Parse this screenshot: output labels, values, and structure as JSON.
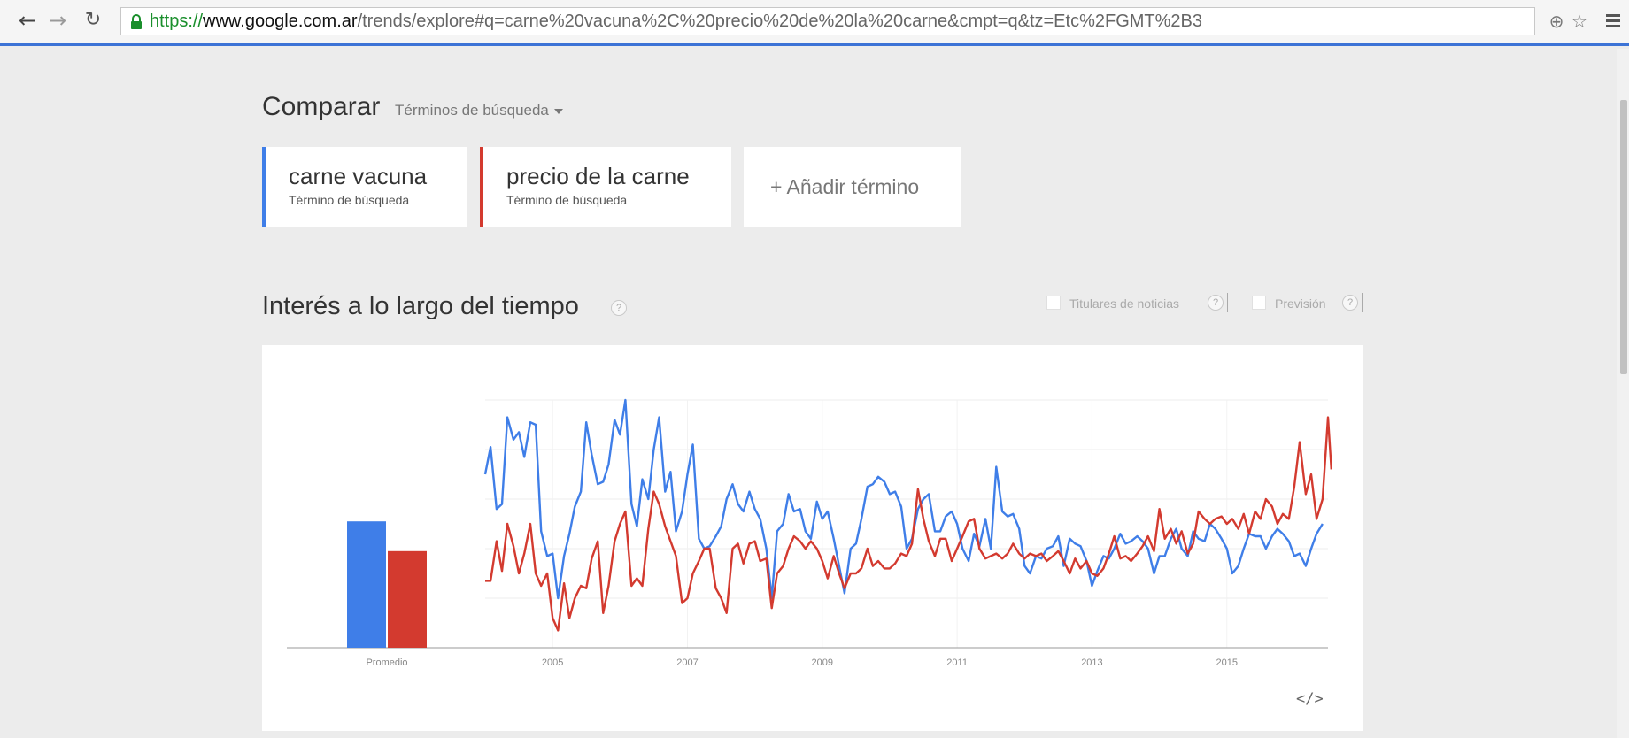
{
  "browser": {
    "url_protocol": "https://",
    "url_host": "www.google.com.ar",
    "url_path": "/trends/explore#q=carne%20vacuna%2C%20precio%20de%20la%20carne&cmpt=q&tz=Etc%2FGMT%2B3",
    "icons": [
      "back-arrow-icon",
      "forward-arrow-icon",
      "reload-icon",
      "lock-icon",
      "zoom-icon",
      "star-icon",
      "menu-icon"
    ]
  },
  "compare": {
    "title": "Comparar",
    "type_label": "Términos de búsqueda"
  },
  "terms": [
    {
      "name": "carne vacuna",
      "type": "Término de búsqueda",
      "color": "#3f7ee8"
    },
    {
      "name": "precio de la carne",
      "type": "Término de búsqueda",
      "color": "#d33a2f"
    }
  ],
  "add_term": "+ Añadir término",
  "interest": {
    "title": "Interés a lo largo del tiempo",
    "help": "?",
    "news_label": "Titulares de noticias",
    "forecast_label": "Previsión"
  },
  "chart_data": {
    "type": "line",
    "ylim": [
      0,
      100
    ],
    "average_bar": {
      "label": "Promedio",
      "values": [
        51,
        39
      ]
    },
    "x_ticks": [
      "2005",
      "2007",
      "2009",
      "2011",
      "2013",
      "2015"
    ],
    "x_tick_years": [
      2005,
      2007,
      2009,
      2011,
      2013,
      2015
    ],
    "x_range": [
      2004.0,
      2016.5
    ],
    "series": [
      {
        "color": "#3f7ee8",
        "points": [
          [
            2004.0,
            70
          ],
          [
            2004.08,
            81
          ],
          [
            2004.17,
            56
          ],
          [
            2004.25,
            58
          ],
          [
            2004.33,
            93
          ],
          [
            2004.42,
            84
          ],
          [
            2004.5,
            87
          ],
          [
            2004.58,
            77
          ],
          [
            2004.67,
            91
          ],
          [
            2004.75,
            90
          ],
          [
            2004.83,
            47
          ],
          [
            2004.92,
            37
          ],
          [
            2005.0,
            38
          ],
          [
            2005.08,
            20
          ],
          [
            2005.17,
            37
          ],
          [
            2005.25,
            46
          ],
          [
            2005.33,
            57
          ],
          [
            2005.42,
            63
          ],
          [
            2005.5,
            91
          ],
          [
            2005.58,
            78
          ],
          [
            2005.67,
            66
          ],
          [
            2005.75,
            67
          ],
          [
            2005.83,
            74
          ],
          [
            2005.92,
            92
          ],
          [
            2006.0,
            86
          ],
          [
            2006.08,
            100
          ],
          [
            2006.17,
            58
          ],
          [
            2006.25,
            49
          ],
          [
            2006.33,
            68
          ],
          [
            2006.42,
            60
          ],
          [
            2006.5,
            80
          ],
          [
            2006.58,
            93
          ],
          [
            2006.67,
            63
          ],
          [
            2006.75,
            71
          ],
          [
            2006.83,
            47
          ],
          [
            2006.92,
            55
          ],
          [
            2007.0,
            70
          ],
          [
            2007.08,
            82
          ],
          [
            2007.17,
            44
          ],
          [
            2007.25,
            40
          ],
          [
            2007.33,
            41
          ],
          [
            2007.42,
            45
          ],
          [
            2007.5,
            49
          ],
          [
            2007.58,
            60
          ],
          [
            2007.67,
            66
          ],
          [
            2007.75,
            58
          ],
          [
            2007.83,
            55
          ],
          [
            2007.92,
            63
          ],
          [
            2008.0,
            56
          ],
          [
            2008.08,
            52
          ],
          [
            2008.17,
            40
          ],
          [
            2008.25,
            20
          ],
          [
            2008.33,
            47
          ],
          [
            2008.42,
            50
          ],
          [
            2008.5,
            62
          ],
          [
            2008.58,
            55
          ],
          [
            2008.67,
            56
          ],
          [
            2008.75,
            47
          ],
          [
            2008.83,
            44
          ],
          [
            2008.92,
            59
          ],
          [
            2009.0,
            52
          ],
          [
            2009.08,
            55
          ],
          [
            2009.17,
            44
          ],
          [
            2009.25,
            33
          ],
          [
            2009.33,
            22
          ],
          [
            2009.42,
            40
          ],
          [
            2009.5,
            42
          ],
          [
            2009.58,
            52
          ],
          [
            2009.67,
            65
          ],
          [
            2009.75,
            66
          ],
          [
            2009.83,
            69
          ],
          [
            2009.92,
            67
          ],
          [
            2010.0,
            62
          ],
          [
            2010.08,
            63
          ],
          [
            2010.17,
            57
          ],
          [
            2010.25,
            40
          ],
          [
            2010.33,
            44
          ],
          [
            2010.42,
            56
          ],
          [
            2010.5,
            60
          ],
          [
            2010.58,
            62
          ],
          [
            2010.67,
            47
          ],
          [
            2010.75,
            47
          ],
          [
            2010.83,
            53
          ],
          [
            2010.92,
            55
          ],
          [
            2011.0,
            50
          ],
          [
            2011.08,
            40
          ],
          [
            2011.17,
            35
          ],
          [
            2011.25,
            46
          ],
          [
            2011.33,
            41
          ],
          [
            2011.42,
            52
          ],
          [
            2011.5,
            40
          ],
          [
            2011.58,
            73
          ],
          [
            2011.67,
            55
          ],
          [
            2011.75,
            53
          ],
          [
            2011.83,
            54
          ],
          [
            2011.92,
            48
          ],
          [
            2012.0,
            33
          ],
          [
            2012.08,
            30
          ],
          [
            2012.17,
            37
          ],
          [
            2012.25,
            36
          ],
          [
            2012.33,
            40
          ],
          [
            2012.42,
            41
          ],
          [
            2012.5,
            45
          ],
          [
            2012.58,
            33
          ],
          [
            2012.67,
            44
          ],
          [
            2012.75,
            42
          ],
          [
            2012.83,
            41
          ],
          [
            2012.92,
            35
          ],
          [
            2013.0,
            25
          ],
          [
            2013.08,
            31
          ],
          [
            2013.17,
            37
          ],
          [
            2013.25,
            36
          ],
          [
            2013.33,
            40
          ],
          [
            2013.42,
            46
          ],
          [
            2013.5,
            42
          ],
          [
            2013.58,
            43
          ],
          [
            2013.67,
            45
          ],
          [
            2013.75,
            43
          ],
          [
            2013.83,
            40
          ],
          [
            2013.92,
            30
          ],
          [
            2014.0,
            37
          ],
          [
            2014.08,
            37
          ],
          [
            2014.17,
            44
          ],
          [
            2014.25,
            48
          ],
          [
            2014.33,
            40
          ],
          [
            2014.42,
            37
          ],
          [
            2014.5,
            47
          ],
          [
            2014.58,
            44
          ],
          [
            2014.67,
            43
          ],
          [
            2014.75,
            50
          ],
          [
            2014.83,
            48
          ],
          [
            2014.92,
            44
          ],
          [
            2015.0,
            40
          ],
          [
            2015.08,
            30
          ],
          [
            2015.17,
            33
          ],
          [
            2015.25,
            40
          ],
          [
            2015.33,
            46
          ],
          [
            2015.42,
            45
          ],
          [
            2015.5,
            45
          ],
          [
            2015.58,
            40
          ],
          [
            2015.67,
            45
          ],
          [
            2015.75,
            48
          ],
          [
            2015.83,
            46
          ],
          [
            2015.92,
            43
          ],
          [
            2016.0,
            37
          ],
          [
            2016.08,
            38
          ],
          [
            2016.17,
            33
          ],
          [
            2016.25,
            40
          ],
          [
            2016.33,
            46
          ],
          [
            2016.42,
            50
          ]
        ]
      },
      {
        "color": "#d33a2f",
        "points": [
          [
            2004.0,
            27
          ],
          [
            2004.08,
            27
          ],
          [
            2004.17,
            43
          ],
          [
            2004.25,
            31
          ],
          [
            2004.33,
            50
          ],
          [
            2004.42,
            41
          ],
          [
            2004.5,
            30
          ],
          [
            2004.58,
            38
          ],
          [
            2004.67,
            50
          ],
          [
            2004.75,
            30
          ],
          [
            2004.83,
            25
          ],
          [
            2004.92,
            30
          ],
          [
            2005.0,
            12
          ],
          [
            2005.08,
            7
          ],
          [
            2005.17,
            26
          ],
          [
            2005.25,
            12
          ],
          [
            2005.33,
            20
          ],
          [
            2005.42,
            25
          ],
          [
            2005.5,
            24
          ],
          [
            2005.58,
            36
          ],
          [
            2005.67,
            43
          ],
          [
            2005.75,
            14
          ],
          [
            2005.83,
            25
          ],
          [
            2005.92,
            43
          ],
          [
            2006.0,
            50
          ],
          [
            2006.08,
            55
          ],
          [
            2006.17,
            25
          ],
          [
            2006.25,
            28
          ],
          [
            2006.33,
            25
          ],
          [
            2006.42,
            48
          ],
          [
            2006.5,
            63
          ],
          [
            2006.58,
            58
          ],
          [
            2006.67,
            49
          ],
          [
            2006.75,
            43
          ],
          [
            2006.83,
            37
          ],
          [
            2006.92,
            18
          ],
          [
            2007.0,
            20
          ],
          [
            2007.08,
            30
          ],
          [
            2007.17,
            35
          ],
          [
            2007.25,
            40
          ],
          [
            2007.33,
            40
          ],
          [
            2007.42,
            24
          ],
          [
            2007.5,
            20
          ],
          [
            2007.58,
            14
          ],
          [
            2007.67,
            40
          ],
          [
            2007.75,
            42
          ],
          [
            2007.83,
            34
          ],
          [
            2007.92,
            42
          ],
          [
            2008.0,
            43
          ],
          [
            2008.08,
            35
          ],
          [
            2008.17,
            36
          ],
          [
            2008.25,
            16
          ],
          [
            2008.33,
            30
          ],
          [
            2008.42,
            33
          ],
          [
            2008.5,
            40
          ],
          [
            2008.58,
            45
          ],
          [
            2008.67,
            43
          ],
          [
            2008.75,
            40
          ],
          [
            2008.83,
            43
          ],
          [
            2008.92,
            40
          ],
          [
            2009.0,
            35
          ],
          [
            2009.08,
            28
          ],
          [
            2009.17,
            37
          ],
          [
            2009.25,
            30
          ],
          [
            2009.33,
            24
          ],
          [
            2009.42,
            30
          ],
          [
            2009.5,
            30
          ],
          [
            2009.58,
            32
          ],
          [
            2009.67,
            40
          ],
          [
            2009.75,
            33
          ],
          [
            2009.83,
            35
          ],
          [
            2009.92,
            32
          ],
          [
            2010.0,
            32
          ],
          [
            2010.08,
            34
          ],
          [
            2010.17,
            38
          ],
          [
            2010.25,
            37
          ],
          [
            2010.33,
            42
          ],
          [
            2010.42,
            64
          ],
          [
            2010.5,
            52
          ],
          [
            2010.58,
            43
          ],
          [
            2010.67,
            37
          ],
          [
            2010.75,
            44
          ],
          [
            2010.83,
            44
          ],
          [
            2010.92,
            35
          ],
          [
            2011.0,
            40
          ],
          [
            2011.08,
            45
          ],
          [
            2011.17,
            51
          ],
          [
            2011.25,
            52
          ],
          [
            2011.33,
            40
          ],
          [
            2011.42,
            36
          ],
          [
            2011.5,
            37
          ],
          [
            2011.58,
            38
          ],
          [
            2011.67,
            36
          ],
          [
            2011.75,
            38
          ],
          [
            2011.83,
            42
          ],
          [
            2011.92,
            38
          ],
          [
            2012.0,
            36
          ],
          [
            2012.08,
            38
          ],
          [
            2012.17,
            37
          ],
          [
            2012.25,
            38
          ],
          [
            2012.33,
            35
          ],
          [
            2012.42,
            37
          ],
          [
            2012.5,
            39
          ],
          [
            2012.58,
            35
          ],
          [
            2012.67,
            30
          ],
          [
            2012.75,
            36
          ],
          [
            2012.83,
            32
          ],
          [
            2012.92,
            35
          ],
          [
            2013.0,
            30
          ],
          [
            2013.08,
            29
          ],
          [
            2013.17,
            32
          ],
          [
            2013.25,
            38
          ],
          [
            2013.33,
            45
          ],
          [
            2013.42,
            36
          ],
          [
            2013.5,
            37
          ],
          [
            2013.58,
            35
          ],
          [
            2013.67,
            38
          ],
          [
            2013.75,
            41
          ],
          [
            2013.83,
            45
          ],
          [
            2013.92,
            39
          ],
          [
            2014.0,
            56
          ],
          [
            2014.08,
            44
          ],
          [
            2014.17,
            48
          ],
          [
            2014.25,
            42
          ],
          [
            2014.33,
            47
          ],
          [
            2014.42,
            38
          ],
          [
            2014.5,
            42
          ],
          [
            2014.58,
            55
          ],
          [
            2014.67,
            52
          ],
          [
            2014.75,
            50
          ],
          [
            2014.83,
            52
          ],
          [
            2014.92,
            53
          ],
          [
            2015.0,
            50
          ],
          [
            2015.08,
            52
          ],
          [
            2015.17,
            48
          ],
          [
            2015.25,
            54
          ],
          [
            2015.33,
            46
          ],
          [
            2015.42,
            55
          ],
          [
            2015.5,
            52
          ],
          [
            2015.58,
            60
          ],
          [
            2015.67,
            57
          ],
          [
            2015.75,
            50
          ],
          [
            2015.83,
            54
          ],
          [
            2015.92,
            52
          ],
          [
            2016.0,
            65
          ],
          [
            2016.08,
            83
          ],
          [
            2016.17,
            62
          ],
          [
            2016.25,
            70
          ],
          [
            2016.33,
            52
          ],
          [
            2016.42,
            60
          ],
          [
            2016.5,
            93
          ],
          [
            2016.55,
            72
          ]
        ]
      }
    ]
  }
}
